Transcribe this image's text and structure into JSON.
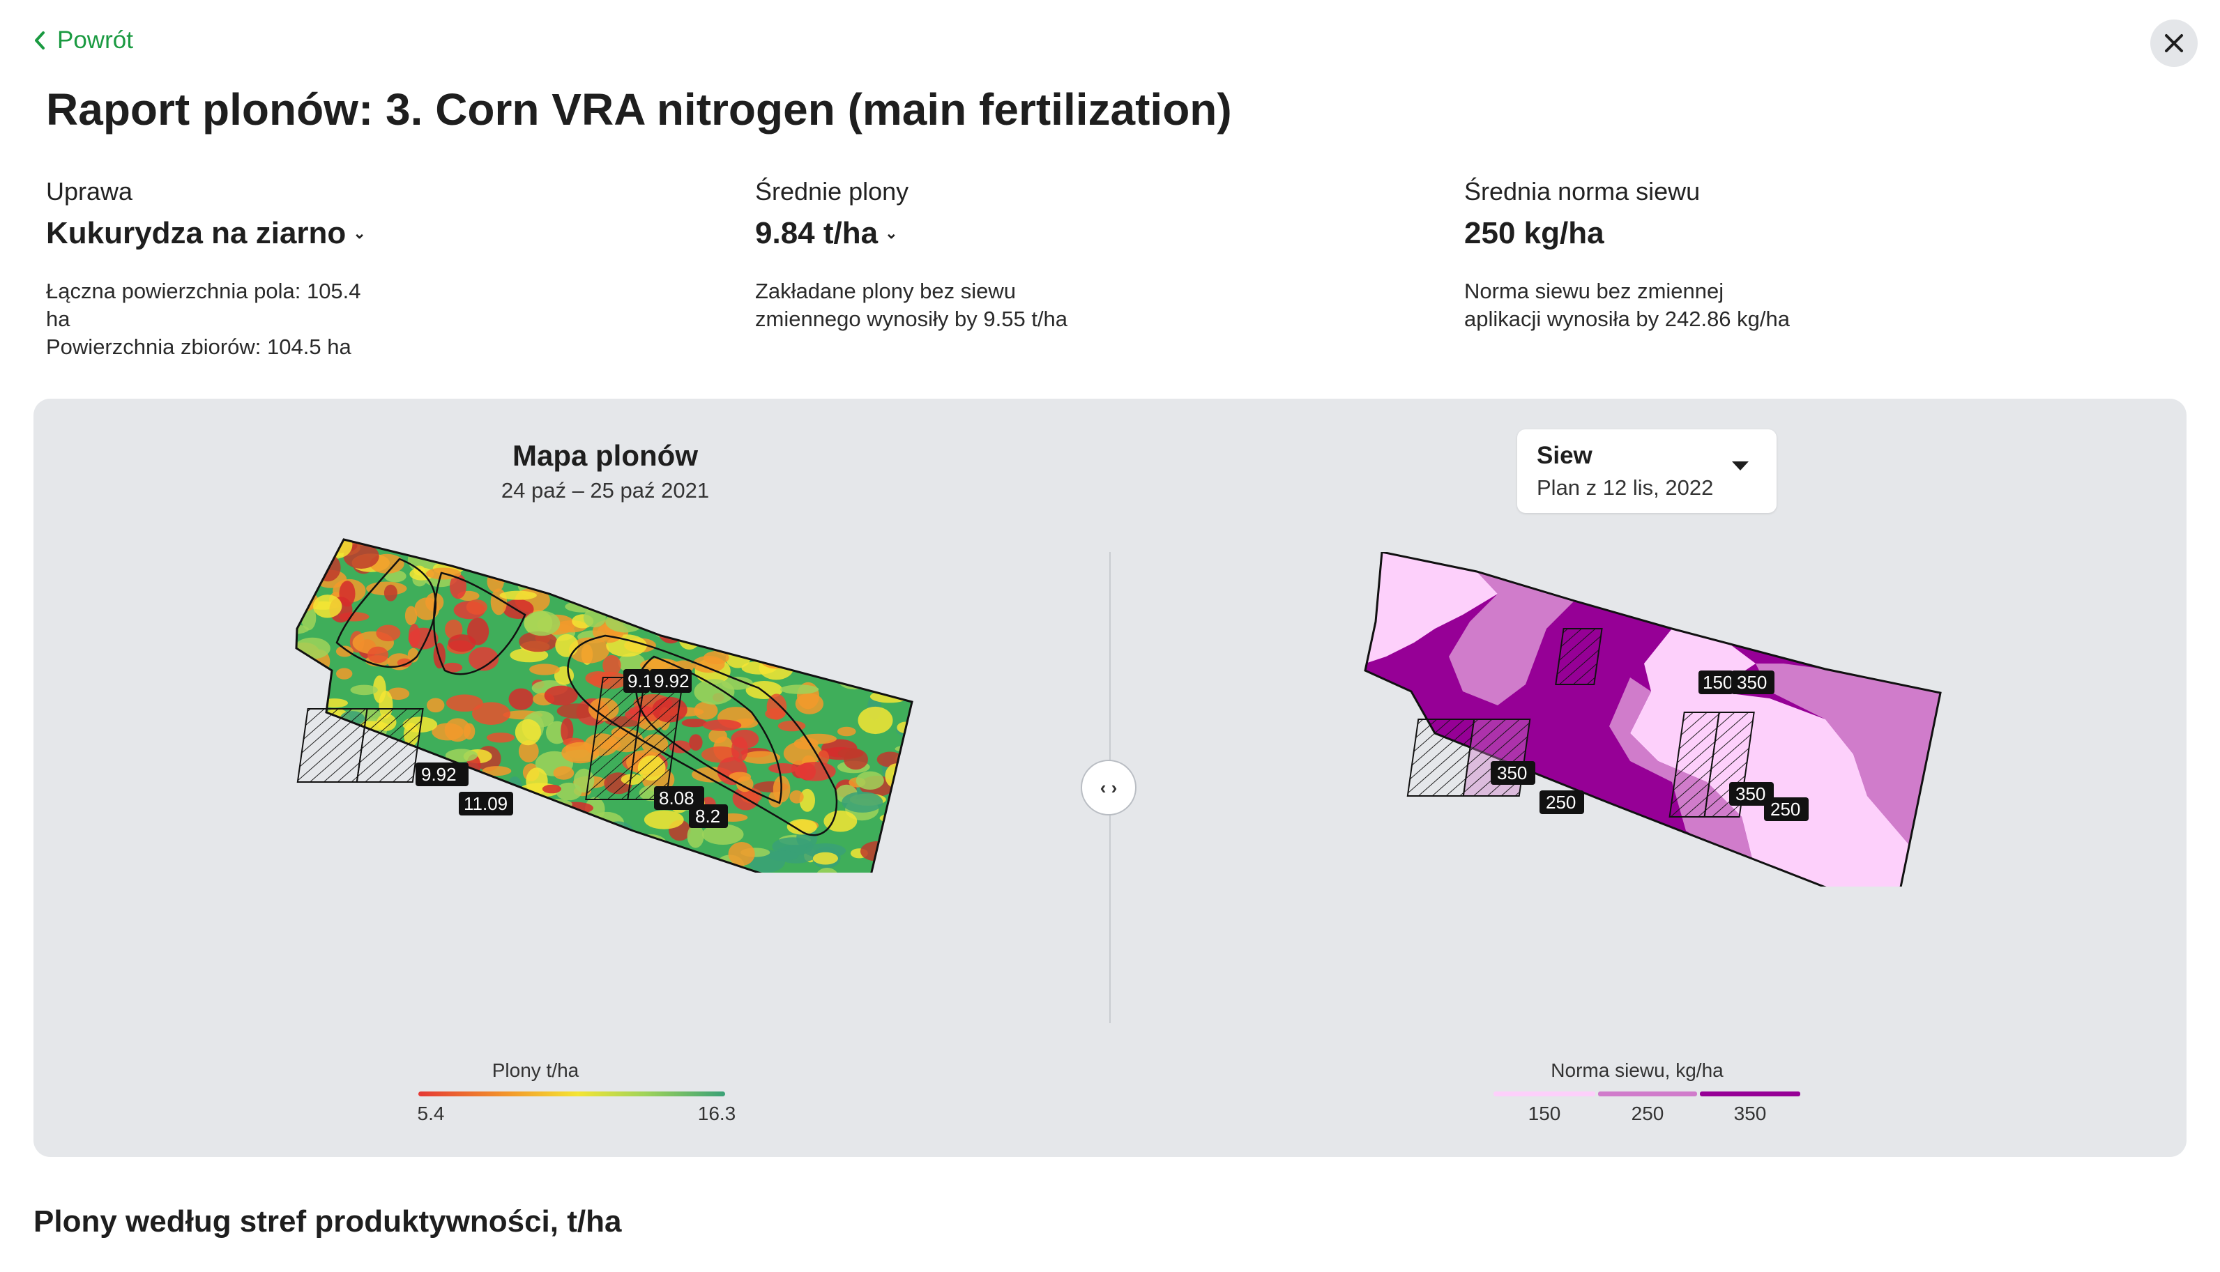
{
  "nav": {
    "back_label": "Powrót"
  },
  "page": {
    "title": "Raport plonów: 3. Corn VRA nitrogen (main fertilization)"
  },
  "stats": {
    "crop": {
      "label": "Uprawa",
      "value": "Kukurydza na ziarno",
      "desc_line1": "Łączna powierzchnia pola: 105.4",
      "desc_line2": "ha",
      "desc_line3": "Powierzchnia zbiorów: 104.5 ha"
    },
    "yield": {
      "label": "Średnie plony",
      "value": "9.84 t/ha",
      "desc_line1": "Zakładane plony bez siewu",
      "desc_line2": "zmiennego wynosiły by 9.55 t/ha"
    },
    "seeding": {
      "label": "Średnia norma siewu",
      "value": "250 kg/ha",
      "desc_line1": "Norma siewu bez zmiennej",
      "desc_line2": "aplikacji wynosiła by 242.86 kg/ha"
    }
  },
  "yield_map": {
    "title": "Mapa plonów",
    "date_range": "24 paź – 25 paź 2021",
    "labels": [
      "9.1",
      "9.92",
      "9.92",
      "11.09",
      "8.08",
      "8.2"
    ],
    "legend": {
      "title": "Plony t/ha",
      "min": "5.4",
      "max": "16.3"
    }
  },
  "seeding_map": {
    "dropdown_label": "Siew",
    "dropdown_value": "Plan z 12 lis, 2022",
    "labels": [
      "150",
      "350",
      "350",
      "250",
      "350",
      "250"
    ],
    "legend": {
      "title": "Norma siewu, kg/ha",
      "ticks": [
        "150",
        "250",
        "350"
      ]
    },
    "colors": {
      "low": "#fdd0fb",
      "mid": "#d07ccb",
      "high": "#960096"
    }
  },
  "compare_handle": {
    "glyph": "‹ ›"
  },
  "section": {
    "title": "Plony według stref produktywności, t/ha"
  }
}
